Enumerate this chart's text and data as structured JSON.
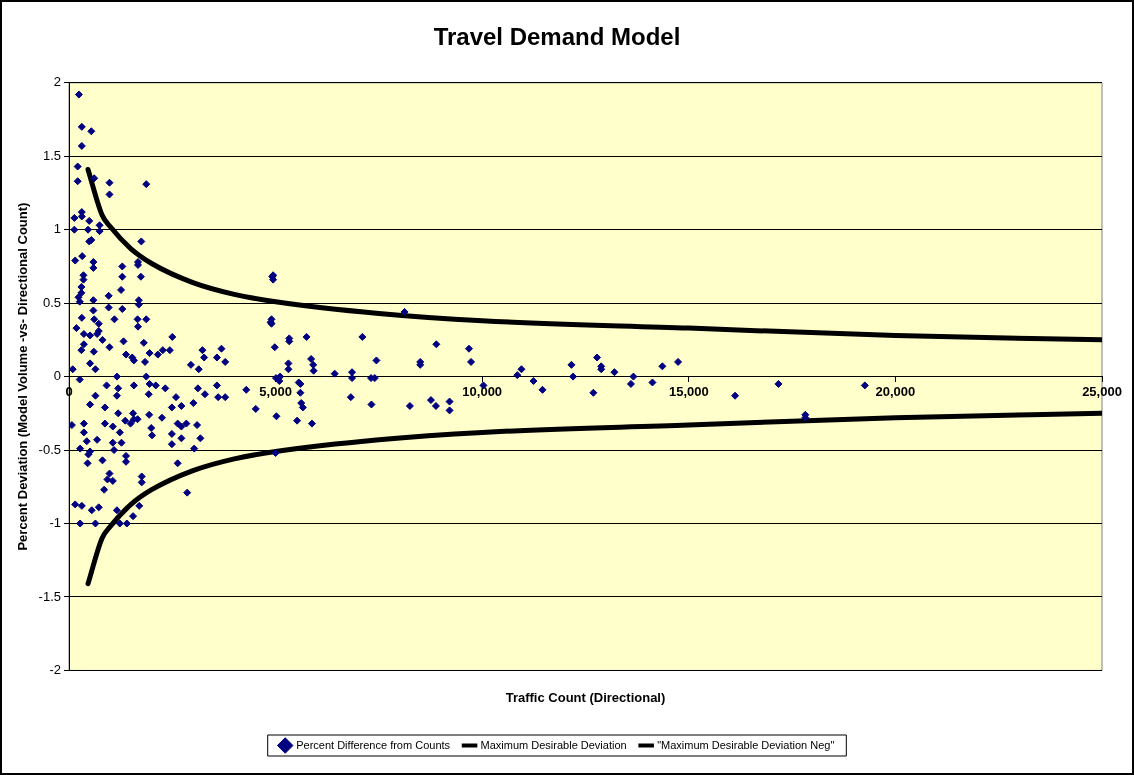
{
  "chart_data": {
    "type": "scatter",
    "title": "Travel Demand Model",
    "xlabel": "Traffic Count (Directional)",
    "ylabel": "Percent Deviation (Model Volume -vs- Directional Count)",
    "xlim": [
      0,
      25000
    ],
    "xticks": [
      0,
      {
        "value": 5000,
        "label": "5,000"
      },
      {
        "value": 10000,
        "label": "10,000"
      },
      {
        "value": 15000,
        "label": "15,000"
      },
      {
        "value": 20000,
        "label": "20,000"
      },
      {
        "value": 25000,
        "label": "25,000"
      }
    ],
    "ylim": [
      -2,
      2
    ],
    "yticks": [
      -2,
      -1.5,
      -1,
      -0.5,
      0,
      0.5,
      1,
      1.5,
      2
    ],
    "grid": "y",
    "legend": "bottom",
    "series": [
      {
        "name": "Percent Difference from Counts",
        "type": "scatter",
        "marker": "diamond",
        "color": "#000080",
        "x": [
          240,
          310,
          540,
          310,
          210,
          210,
          610,
          980,
          980,
          1870,
          130,
          310,
          310,
          490,
          130,
          460,
          740,
          740,
          540,
          490,
          1750,
          150,
          320,
          590,
          590,
          1290,
          1290,
          1670,
          1670,
          1740,
          350,
          350,
          300,
          300,
          230,
          260,
          590,
          590,
          960,
          960,
          1260,
          1290,
          1690,
          1690,
          310,
          610,
          1100,
          1660,
          1870,
          180,
          360,
          510,
          720,
          720,
          680,
          810,
          360,
          600,
          300,
          980,
          1320,
          1810,
          1670,
          2500,
          1380,
          1530,
          1570,
          1840,
          1950,
          2150,
          2270,
          2440,
          3230,
          3270,
          3580,
          3690,
          3780,
          2950,
          3140,
          90,
          510,
          640,
          4920,
          4880,
          260,
          1160,
          1870,
          910,
          1190,
          1570,
          1950,
          2100,
          2330,
          1160,
          1930,
          2590,
          640,
          510,
          870,
          1190,
          1550,
          1940,
          2250,
          1570,
          2490,
          2720,
          3010,
          3120,
          3290,
          3580,
          3610,
          3780,
          4290,
          4520,
          70,
          360,
          360,
          870,
          1060,
          1360,
          1490,
          1660,
          1990,
          2010,
          2490,
          2630,
          2720,
          2840,
          3100,
          2720,
          3180,
          1230,
          1270,
          1060,
          1090,
          680,
          430,
          270,
          510,
          470,
          450,
          2490,
          3030,
          1380,
          1380,
          810,
          2630,
          980,
          930,
          1060,
          1760,
          1760,
          850,
          2860,
          150,
          310,
          550,
          720,
          1160,
          1700,
          1550,
          270,
          640,
          1230,
          1400,
          4940,
          4940,
          4900,
          4900,
          4980,
          5330,
          5330,
          5750,
          5310,
          5310,
          5860,
          5910,
          5920,
          5010,
          5110,
          5090,
          5560,
          5600,
          5600,
          5620,
          5660,
          5020,
          5520,
          5880,
          6430,
          6850,
          6850,
          6820,
          7100,
          7310,
          7400,
          7440,
          7320,
          8120,
          8250,
          8500,
          8500,
          8760,
          8890,
          8880,
          9210,
          9210,
          9680,
          9730,
          10030,
          10850,
          10950,
          11240,
          11460,
          12160,
          12200,
          12690,
          12780,
          12880,
          12880,
          13200,
          13600,
          13660,
          14120,
          14360,
          14740,
          16120,
          17170,
          17820,
          17820,
          19260,
          5000
        ],
        "values": [
          1.92,
          1.7,
          1.67,
          1.57,
          1.43,
          1.33,
          1.35,
          1.32,
          1.24,
          1.31,
          1.08,
          1.12,
          1.09,
          1.06,
          1.0,
          1.0,
          1.03,
          0.99,
          0.93,
          0.92,
          0.92,
          0.79,
          0.82,
          0.78,
          0.74,
          0.75,
          0.68,
          0.78,
          0.76,
          0.68,
          0.69,
          0.66,
          0.61,
          0.57,
          0.54,
          0.51,
          0.52,
          0.45,
          0.55,
          0.47,
          0.59,
          0.46,
          0.52,
          0.49,
          0.4,
          0.39,
          0.39,
          0.39,
          0.39,
          0.33,
          0.29,
          0.28,
          0.36,
          0.31,
          0.29,
          0.25,
          0.22,
          0.17,
          0.18,
          0.2,
          0.24,
          0.23,
          0.34,
          0.27,
          0.15,
          0.13,
          0.11,
          0.1,
          0.16,
          0.15,
          0.18,
          0.18,
          0.18,
          0.13,
          0.13,
          0.19,
          0.1,
          0.08,
          0.05,
          0.05,
          0.09,
          0.05,
          0.68,
          0.37,
          -0.02,
          0,
          0,
          -0.06,
          -0.08,
          -0.06,
          -0.05,
          -0.06,
          -0.08,
          -0.13,
          -0.12,
          -0.14,
          -0.13,
          -0.19,
          -0.21,
          -0.25,
          -0.25,
          -0.26,
          -0.28,
          -0.29,
          -0.21,
          -0.2,
          -0.18,
          -0.08,
          -0.12,
          -0.06,
          -0.14,
          -0.14,
          -0.09,
          -0.22,
          -0.33,
          -0.32,
          -0.38,
          -0.32,
          -0.34,
          -0.3,
          -0.32,
          -0.29,
          -0.35,
          -0.4,
          -0.39,
          -0.32,
          -0.34,
          -0.32,
          -0.33,
          -0.42,
          -0.42,
          -0.38,
          -0.45,
          -0.45,
          -0.5,
          -0.43,
          -0.44,
          -0.49,
          -0.51,
          -0.53,
          -0.59,
          -0.46,
          -0.49,
          -0.54,
          -0.58,
          -0.57,
          -0.59,
          -0.66,
          -0.7,
          -0.71,
          -0.68,
          -0.72,
          -0.77,
          -0.79,
          -0.87,
          -0.88,
          -0.91,
          -0.89,
          -0.91,
          -0.88,
          -0.95,
          -1.0,
          -1.0,
          -1.0,
          -1.0,
          0.69,
          0.66,
          0.39,
          0.36,
          0.2,
          0.26,
          0.24,
          0.27,
          0.09,
          0.05,
          0.12,
          0.08,
          0.04,
          -0.01,
          0.0,
          -0.03,
          -0.04,
          -0.05,
          -0.11,
          -0.18,
          -0.21,
          -0.27,
          -0.3,
          -0.32,
          0.02,
          0.03,
          -0.01,
          -0.14,
          0.27,
          -0.01,
          -0.01,
          0.11,
          -0.19,
          0.44,
          -0.2,
          0.1,
          0.08,
          -0.16,
          0.22,
          -0.2,
          -0.17,
          -0.23,
          0.19,
          0.1,
          -0.06,
          0.01,
          0.05,
          -0.03,
          -0.09,
          0.08,
          0.0,
          -0.11,
          0.13,
          0.07,
          0.05,
          0.03,
          -0.05,
          0.0,
          -0.04,
          0.07,
          0.1,
          -0.13,
          -0.05,
          -0.26,
          -0.28,
          -0.06,
          -0.52
        ]
      },
      {
        "name": "Maximum Desirable Deviation",
        "type": "line",
        "marker": "none",
        "color": "#000000",
        "x": [
          460,
          800,
          1000,
          1500,
          2000,
          3000,
          4000,
          5000,
          7500,
          10000,
          15000,
          20000,
          25000
        ],
        "values": [
          1.41,
          1.1,
          1.02,
          0.87,
          0.77,
          0.64,
          0.56,
          0.51,
          0.43,
          0.38,
          0.33,
          0.28,
          0.25
        ]
      },
      {
        "name": "\"Maximum Desirable Deviation Neg\"",
        "type": "line",
        "marker": "none",
        "color": "#000000",
        "x": [
          460,
          800,
          1000,
          1500,
          2000,
          3000,
          4000,
          5000,
          7500,
          10000,
          15000,
          20000,
          25000
        ],
        "values": [
          -1.41,
          -1.1,
          -1.02,
          -0.87,
          -0.77,
          -0.64,
          -0.56,
          -0.51,
          -0.43,
          -0.38,
          -0.33,
          -0.28,
          -0.25
        ]
      }
    ]
  }
}
